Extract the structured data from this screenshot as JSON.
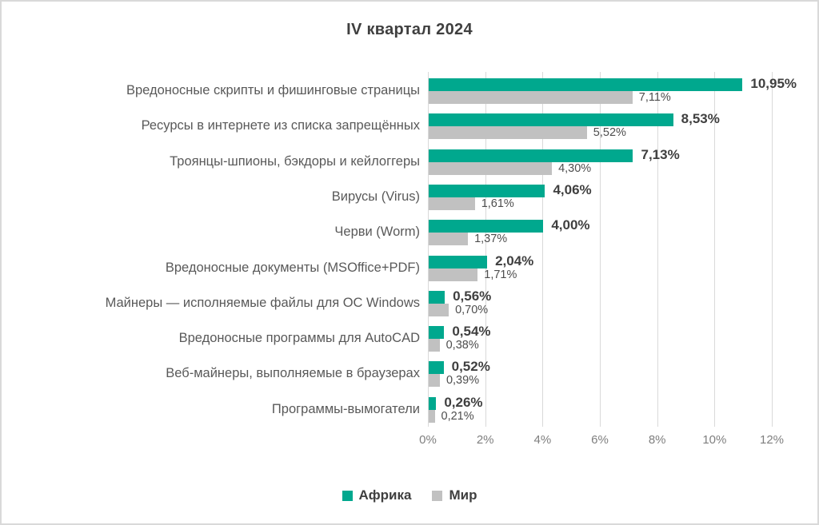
{
  "title": "IV квартал 2024",
  "chart_data": {
    "type": "bar",
    "orientation": "horizontal",
    "title": "IV квартал 2024",
    "categories": [
      "Вредоносные скрипты и фишинговые страницы",
      "Ресурсы в интернете из списка запрещённых",
      "Троянцы-шпионы, бэкдоры и кейлоггеры",
      "Вирусы (Virus)",
      "Черви (Worm)",
      "Вредоносные документы (MSOffice+PDF)",
      "Майнеры — исполняемые файлы для ОС Windows",
      "Вредоносные программы для AutoCAD",
      "Веб-майнеры, выполняемые в браузерах",
      "Программы-вымогатели"
    ],
    "series": [
      {
        "name": "Африка",
        "color": "#00a88e",
        "values": [
          10.95,
          8.53,
          7.13,
          4.06,
          4.0,
          2.04,
          0.56,
          0.54,
          0.52,
          0.26
        ],
        "labels": [
          "10,95%",
          "8,53%",
          "7,13%",
          "4,06%",
          "4,00%",
          "2,04%",
          "0,56%",
          "0,54%",
          "0,52%",
          "0,26%"
        ]
      },
      {
        "name": "Мир",
        "color": "#c1c1c1",
        "values": [
          7.11,
          5.52,
          4.3,
          1.61,
          1.37,
          1.71,
          0.7,
          0.38,
          0.39,
          0.21
        ],
        "labels": [
          "7,11%",
          "5,52%",
          "4,30%",
          "1,61%",
          "1,37%",
          "1,71%",
          "0,70%",
          "0,38%",
          "0,39%",
          "0,21%"
        ]
      }
    ],
    "xlim": [
      0,
      12
    ],
    "x_ticks": [
      "0%",
      "2%",
      "4%",
      "6%",
      "8%",
      "10%",
      "12%"
    ],
    "grid": true,
    "gridline_color": "#d9d9d9",
    "legend_position": "bottom"
  }
}
